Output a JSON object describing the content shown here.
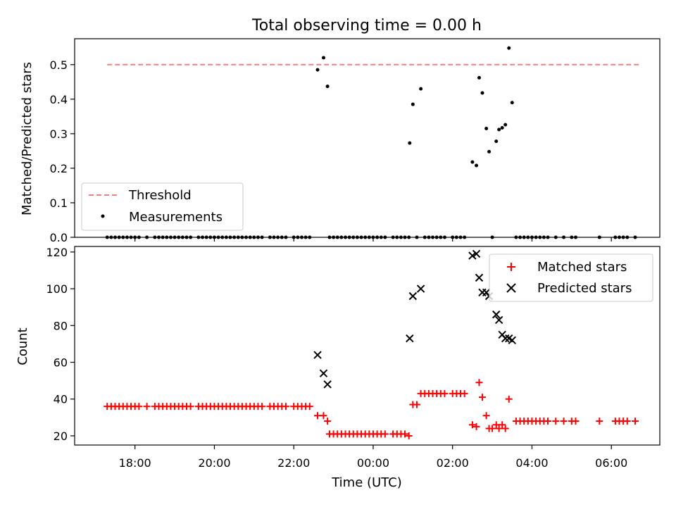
{
  "chart_data": [
    {
      "type": "scatter",
      "title": "Total observing time = 0.00 h",
      "ylabel": "Matched/Predicted stars",
      "xlabel": "",
      "x_unit": "hours (UTC, continuing past midnight)",
      "xlim": [
        16.48,
        7.22
      ],
      "ylim": [
        0.0,
        0.575
      ],
      "yticks": [
        0.0,
        0.1,
        0.2,
        0.3,
        0.4,
        0.5
      ],
      "ytick_labels": [
        "0.0",
        "0.1",
        "0.2",
        "0.3",
        "0.4",
        "0.5"
      ],
      "legend_position": "lower-left",
      "threshold": {
        "name": "Threshold",
        "value": 0.5,
        "x_start": 17.3,
        "x_end": 6.7,
        "color": "#f08080"
      },
      "series": [
        {
          "name": "Measurements",
          "color": "#000000",
          "points": [
            [
              17.3,
              0
            ],
            [
              17.4,
              0
            ],
            [
              17.5,
              0
            ],
            [
              17.6,
              0
            ],
            [
              17.7,
              0
            ],
            [
              17.8,
              0
            ],
            [
              17.9,
              0
            ],
            [
              18.0,
              0
            ],
            [
              18.1,
              0
            ],
            [
              18.3,
              0
            ],
            [
              18.5,
              0
            ],
            [
              18.6,
              0
            ],
            [
              18.7,
              0
            ],
            [
              18.8,
              0
            ],
            [
              18.9,
              0
            ],
            [
              19.0,
              0
            ],
            [
              19.1,
              0
            ],
            [
              19.2,
              0
            ],
            [
              19.3,
              0
            ],
            [
              19.4,
              0
            ],
            [
              19.6,
              0
            ],
            [
              19.7,
              0
            ],
            [
              19.8,
              0
            ],
            [
              19.9,
              0
            ],
            [
              20.0,
              0
            ],
            [
              20.1,
              0
            ],
            [
              20.2,
              0
            ],
            [
              20.3,
              0
            ],
            [
              20.4,
              0
            ],
            [
              20.5,
              0
            ],
            [
              20.6,
              0
            ],
            [
              20.7,
              0
            ],
            [
              20.8,
              0
            ],
            [
              20.9,
              0
            ],
            [
              21.0,
              0
            ],
            [
              21.1,
              0
            ],
            [
              21.2,
              0
            ],
            [
              21.4,
              0
            ],
            [
              21.5,
              0
            ],
            [
              21.6,
              0
            ],
            [
              21.7,
              0
            ],
            [
              21.8,
              0
            ],
            [
              22.0,
              0
            ],
            [
              22.1,
              0
            ],
            [
              22.2,
              0
            ],
            [
              22.3,
              0
            ],
            [
              22.4,
              0
            ],
            [
              22.6,
              0.485
            ],
            [
              22.75,
              0.52
            ],
            [
              22.85,
              0.437
            ],
            [
              22.9,
              0
            ],
            [
              23.0,
              0
            ],
            [
              23.1,
              0
            ],
            [
              23.2,
              0
            ],
            [
              23.3,
              0
            ],
            [
              23.4,
              0
            ],
            [
              23.5,
              0
            ],
            [
              23.6,
              0
            ],
            [
              23.7,
              0
            ],
            [
              23.8,
              0
            ],
            [
              23.9,
              0
            ],
            [
              0.0,
              0
            ],
            [
              0.1,
              0
            ],
            [
              0.2,
              0
            ],
            [
              0.3,
              0
            ],
            [
              0.5,
              0
            ],
            [
              0.6,
              0
            ],
            [
              0.7,
              0
            ],
            [
              0.8,
              0
            ],
            [
              0.9,
              0
            ],
            [
              0.92,
              0.273
            ],
            [
              1.0,
              0.385
            ],
            [
              1.2,
              0.43
            ],
            [
              1.1,
              0
            ],
            [
              1.3,
              0
            ],
            [
              1.4,
              0
            ],
            [
              1.5,
              0
            ],
            [
              1.6,
              0
            ],
            [
              1.7,
              0
            ],
            [
              1.8,
              0
            ],
            [
              2.0,
              0
            ],
            [
              2.1,
              0
            ],
            [
              2.2,
              0
            ],
            [
              2.3,
              0
            ],
            [
              2.5,
              0.218
            ],
            [
              2.6,
              0.208
            ],
            [
              2.67,
              0.462
            ],
            [
              2.75,
              0.418
            ],
            [
              2.85,
              0.315
            ],
            [
              2.92,
              0.248
            ],
            [
              3.1,
              0.278
            ],
            [
              3.17,
              0.312
            ],
            [
              3.25,
              0.317
            ],
            [
              3.33,
              0.326
            ],
            [
              3.42,
              0.548
            ],
            [
              3.5,
              0.39
            ],
            [
              3.0,
              0
            ],
            [
              3.6,
              0
            ],
            [
              3.7,
              0
            ],
            [
              3.8,
              0
            ],
            [
              3.9,
              0
            ],
            [
              4.0,
              0
            ],
            [
              4.1,
              0
            ],
            [
              4.2,
              0
            ],
            [
              4.3,
              0
            ],
            [
              4.4,
              0
            ],
            [
              4.6,
              0
            ],
            [
              4.8,
              0
            ],
            [
              5.0,
              0
            ],
            [
              5.1,
              0
            ],
            [
              5.7,
              0
            ],
            [
              6.1,
              0
            ],
            [
              6.2,
              0
            ],
            [
              6.3,
              0
            ],
            [
              6.4,
              0
            ],
            [
              6.6,
              0
            ]
          ]
        }
      ]
    },
    {
      "type": "scatter",
      "ylabel": "Count",
      "xlabel": "Time (UTC)",
      "x_unit": "hours (UTC, continuing past midnight)",
      "xlim": [
        16.48,
        7.22
      ],
      "ylim": [
        15.0,
        123.0
      ],
      "yticks": [
        20,
        40,
        60,
        80,
        100,
        120
      ],
      "ytick_labels": [
        "20",
        "40",
        "60",
        "80",
        "100",
        "120"
      ],
      "xticks": [
        18,
        20,
        22,
        0,
        2,
        4,
        6
      ],
      "xtick_labels": [
        "18:00",
        "20:00",
        "22:00",
        "00:00",
        "02:00",
        "04:00",
        "06:00"
      ],
      "legend_position": "upper-right",
      "series": [
        {
          "name": "Matched stars",
          "marker": "plus",
          "color": "#ff0000",
          "points": [
            [
              17.3,
              36
            ],
            [
              17.4,
              36
            ],
            [
              17.5,
              36
            ],
            [
              17.6,
              36
            ],
            [
              17.7,
              36
            ],
            [
              17.8,
              36
            ],
            [
              17.9,
              36
            ],
            [
              18.0,
              36
            ],
            [
              18.1,
              36
            ],
            [
              18.3,
              36
            ],
            [
              18.5,
              36
            ],
            [
              18.6,
              36
            ],
            [
              18.7,
              36
            ],
            [
              18.8,
              36
            ],
            [
              18.9,
              36
            ],
            [
              19.0,
              36
            ],
            [
              19.1,
              36
            ],
            [
              19.2,
              36
            ],
            [
              19.3,
              36
            ],
            [
              19.4,
              36
            ],
            [
              19.6,
              36
            ],
            [
              19.7,
              36
            ],
            [
              19.8,
              36
            ],
            [
              19.9,
              36
            ],
            [
              20.0,
              36
            ],
            [
              20.1,
              36
            ],
            [
              20.2,
              36
            ],
            [
              20.3,
              36
            ],
            [
              20.4,
              36
            ],
            [
              20.5,
              36
            ],
            [
              20.6,
              36
            ],
            [
              20.7,
              36
            ],
            [
              20.8,
              36
            ],
            [
              20.9,
              36
            ],
            [
              21.0,
              36
            ],
            [
              21.1,
              36
            ],
            [
              21.2,
              36
            ],
            [
              21.4,
              36
            ],
            [
              21.5,
              36
            ],
            [
              21.6,
              36
            ],
            [
              21.7,
              36
            ],
            [
              21.8,
              36
            ],
            [
              22.0,
              36
            ],
            [
              22.1,
              36
            ],
            [
              22.2,
              36
            ],
            [
              22.3,
              36
            ],
            [
              22.4,
              36
            ],
            [
              22.6,
              31
            ],
            [
              22.75,
              31
            ],
            [
              22.85,
              28
            ],
            [
              22.9,
              21
            ],
            [
              23.0,
              21
            ],
            [
              23.1,
              21
            ],
            [
              23.2,
              21
            ],
            [
              23.3,
              21
            ],
            [
              23.4,
              21
            ],
            [
              23.5,
              21
            ],
            [
              23.6,
              21
            ],
            [
              23.7,
              21
            ],
            [
              23.8,
              21
            ],
            [
              23.9,
              21
            ],
            [
              0.0,
              21
            ],
            [
              0.1,
              21
            ],
            [
              0.2,
              21
            ],
            [
              0.3,
              21
            ],
            [
              0.5,
              21
            ],
            [
              0.6,
              21
            ],
            [
              0.7,
              21
            ],
            [
              0.8,
              21
            ],
            [
              0.9,
              20
            ],
            [
              1.0,
              37
            ],
            [
              1.1,
              37
            ],
            [
              1.2,
              43
            ],
            [
              1.3,
              43
            ],
            [
              1.4,
              43
            ],
            [
              1.5,
              43
            ],
            [
              1.6,
              43
            ],
            [
              1.7,
              43
            ],
            [
              1.8,
              43
            ],
            [
              2.0,
              43
            ],
            [
              2.1,
              43
            ],
            [
              2.2,
              43
            ],
            [
              2.3,
              43
            ],
            [
              2.5,
              26
            ],
            [
              2.6,
              25
            ],
            [
              2.67,
              49
            ],
            [
              2.75,
              41
            ],
            [
              2.85,
              31
            ],
            [
              2.92,
              24
            ],
            [
              3.0,
              24
            ],
            [
              3.1,
              26
            ],
            [
              3.17,
              24
            ],
            [
              3.25,
              26
            ],
            [
              3.33,
              24
            ],
            [
              3.42,
              40
            ],
            [
              3.6,
              28
            ],
            [
              3.7,
              28
            ],
            [
              3.8,
              28
            ],
            [
              3.9,
              28
            ],
            [
              4.0,
              28
            ],
            [
              4.1,
              28
            ],
            [
              4.2,
              28
            ],
            [
              4.3,
              28
            ],
            [
              4.4,
              28
            ],
            [
              4.6,
              28
            ],
            [
              4.8,
              28
            ],
            [
              5.0,
              28
            ],
            [
              5.1,
              28
            ],
            [
              5.7,
              28
            ],
            [
              6.1,
              28
            ],
            [
              6.2,
              28
            ],
            [
              6.3,
              28
            ],
            [
              6.4,
              28
            ],
            [
              6.6,
              28
            ]
          ]
        },
        {
          "name": "Predicted stars",
          "marker": "x",
          "color": "#000000",
          "points": [
            [
              22.6,
              64
            ],
            [
              22.75,
              54
            ],
            [
              22.85,
              48
            ],
            [
              0.92,
              73
            ],
            [
              1.0,
              96
            ],
            [
              1.2,
              100
            ],
            [
              2.5,
              118
            ],
            [
              2.6,
              119
            ],
            [
              2.67,
              106
            ],
            [
              2.75,
              98
            ],
            [
              2.85,
              98
            ],
            [
              2.92,
              96
            ],
            [
              3.1,
              86
            ],
            [
              3.17,
              83
            ],
            [
              3.25,
              75
            ],
            [
              3.33,
              73
            ],
            [
              3.42,
              73
            ],
            [
              3.5,
              72
            ]
          ]
        }
      ]
    }
  ]
}
